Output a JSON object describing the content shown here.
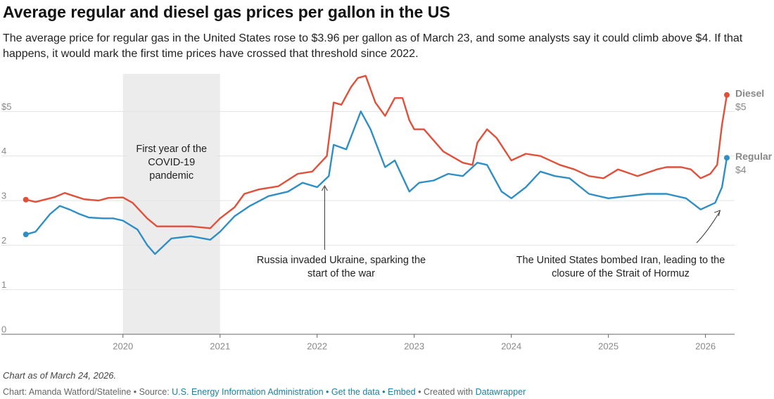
{
  "chart_data": {
    "type": "line",
    "title": "Average regular and diesel gas prices per gallon in the US",
    "subtitle": "The average price for regular gas in the United States rose to $3.96 per gallon as of March 23, and some analysts say it could climb above $4. If that happens, it would mark the first time prices have crossed that threshold since 2022.",
    "note": "Chart as of March 24, 2026.",
    "credit": "Chart: Amanda Watford/Stateline • Source:",
    "source": "U.S. Energy Information Administration",
    "links": [
      "• Get the data",
      "• Embed"
    ],
    "created": "• Created with",
    "tool": "Datawrapper",
    "xlim": [
      2018.98,
      2026.3
    ],
    "xticks": [
      2020,
      2021,
      2022,
      2023,
      2024,
      2025,
      2026
    ],
    "ylim": [
      0,
      6
    ],
    "yticks": [
      0,
      1,
      2,
      3,
      4,
      {
        "value": 5,
        "label": "$5"
      }
    ],
    "grid": true,
    "shading": {
      "from": 2020,
      "to": 2021,
      "label": "First year of the COVID-19 pandemic",
      "color": "#ececec"
    },
    "annotations": [
      {
        "text": "Russia invaded Ukraine, sparking the start of the war",
        "x": 2022.15
      },
      {
        "text": "The United States bombed Iran, leading to the closure of the Strait of Hormuz",
        "x": 2026.15
      }
    ],
    "series": [
      {
        "name": "Diesel",
        "color": "#e0503a",
        "end_label": "$5",
        "x": [
          2019.0,
          2019.1,
          2019.3,
          2019.4,
          2019.5,
          2019.6,
          2019.75,
          2019.85,
          2020.0,
          2020.1,
          2020.25,
          2020.35,
          2020.5,
          2020.7,
          2020.9,
          2021.0,
          2021.15,
          2021.25,
          2021.4,
          2021.6,
          2021.8,
          2021.95,
          2022.1,
          2022.17,
          2022.25,
          2022.35,
          2022.42,
          2022.5,
          2022.6,
          2022.7,
          2022.8,
          2022.88,
          2022.95,
          2023.0,
          2023.1,
          2023.3,
          2023.5,
          2023.6,
          2023.65,
          2023.75,
          2023.85,
          2024.0,
          2024.15,
          2024.3,
          2024.5,
          2024.65,
          2024.8,
          2024.95,
          2025.1,
          2025.3,
          2025.5,
          2025.6,
          2025.75,
          2025.85,
          2025.95,
          2026.05,
          2026.12,
          2026.17,
          2026.22
        ],
        "values": [
          3.02,
          2.97,
          3.08,
          3.17,
          3.1,
          3.03,
          3.0,
          3.06,
          3.07,
          2.95,
          2.6,
          2.42,
          2.42,
          2.42,
          2.38,
          2.6,
          2.85,
          3.15,
          3.25,
          3.32,
          3.6,
          3.65,
          4.0,
          5.2,
          5.15,
          5.55,
          5.75,
          5.8,
          5.2,
          4.9,
          5.3,
          5.3,
          4.8,
          4.6,
          4.6,
          4.1,
          3.85,
          3.8,
          4.3,
          4.6,
          4.4,
          3.9,
          4.05,
          4.0,
          3.8,
          3.7,
          3.55,
          3.5,
          3.7,
          3.55,
          3.7,
          3.75,
          3.75,
          3.7,
          3.5,
          3.6,
          3.8,
          4.7,
          5.37
        ]
      },
      {
        "name": "Regular",
        "color": "#2f8fc4",
        "end_label": "$4",
        "x": [
          2019.0,
          2019.1,
          2019.25,
          2019.35,
          2019.45,
          2019.55,
          2019.65,
          2019.8,
          2019.9,
          2020.0,
          2020.15,
          2020.25,
          2020.33,
          2020.5,
          2020.7,
          2020.9,
          2021.0,
          2021.15,
          2021.3,
          2021.5,
          2021.7,
          2021.85,
          2022.0,
          2022.12,
          2022.17,
          2022.3,
          2022.45,
          2022.55,
          2022.7,
          2022.8,
          2022.95,
          2023.05,
          2023.2,
          2023.35,
          2023.5,
          2023.65,
          2023.75,
          2023.9,
          2024.0,
          2024.15,
          2024.3,
          2024.45,
          2024.6,
          2024.8,
          2025.0,
          2025.2,
          2025.4,
          2025.6,
          2025.8,
          2025.95,
          2026.1,
          2026.17,
          2026.22
        ],
        "values": [
          2.24,
          2.3,
          2.7,
          2.88,
          2.8,
          2.7,
          2.62,
          2.6,
          2.6,
          2.55,
          2.35,
          2.0,
          1.8,
          2.15,
          2.2,
          2.12,
          2.3,
          2.65,
          2.87,
          3.1,
          3.2,
          3.4,
          3.3,
          3.55,
          4.25,
          4.15,
          5.0,
          4.6,
          3.75,
          3.9,
          3.2,
          3.4,
          3.45,
          3.6,
          3.55,
          3.85,
          3.8,
          3.2,
          3.05,
          3.3,
          3.65,
          3.55,
          3.5,
          3.15,
          3.05,
          3.1,
          3.15,
          3.15,
          3.05,
          2.8,
          2.95,
          3.3,
          3.96
        ]
      }
    ]
  }
}
